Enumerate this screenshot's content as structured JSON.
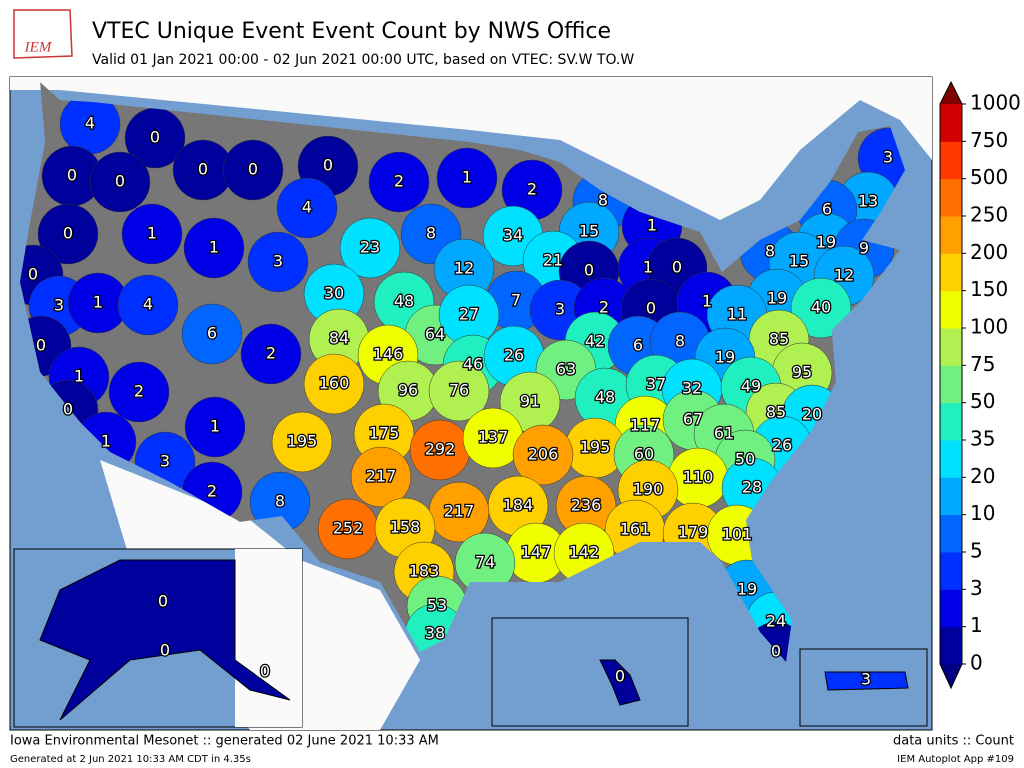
{
  "header": {
    "logo": "IEM",
    "title": "VTEC Unique Event Event Count by NWS Office",
    "subtitle": "Valid 01 Jan 2021 00:00 - 02 Jun 2021 00:00 UTC, based on VTEC: SV.W TO.W"
  },
  "map": {
    "labels": [
      4,
      0,
      0,
      0,
      0,
      0,
      0,
      2,
      1,
      2,
      8,
      1,
      3,
      13,
      6,
      4,
      0,
      1,
      1,
      3,
      23,
      8,
      34,
      15,
      19,
      9,
      21,
      12,
      0,
      1,
      0,
      8,
      15,
      12,
      0,
      3,
      1,
      4,
      30,
      48,
      7,
      3,
      2,
      0,
      1,
      19,
      40,
      6,
      2,
      84,
      64,
      27,
      11,
      0,
      146,
      46,
      26,
      42,
      63,
      6,
      8,
      85,
      1,
      2,
      160,
      96,
      76,
      19,
      95,
      91,
      48,
      37,
      32,
      49,
      0,
      85,
      20,
      195,
      175,
      292,
      137,
      117,
      67,
      61,
      1,
      1,
      195,
      206,
      60,
      26,
      50,
      3,
      217,
      110,
      190,
      28,
      2,
      8,
      184,
      236,
      217,
      252,
      158,
      161,
      179,
      101,
      147,
      142,
      74,
      183,
      19,
      53,
      38,
      24,
      0,
      0,
      0,
      0,
      0,
      3
    ]
  },
  "colorbar": {
    "ticks": [
      0,
      1,
      3,
      5,
      10,
      20,
      35,
      50,
      75,
      100,
      150,
      200,
      250,
      500,
      750,
      1000
    ],
    "colors": [
      "#00009c",
      "#0000e6",
      "#0030ff",
      "#0066ff",
      "#00a8ff",
      "#00e0ff",
      "#20f0c0",
      "#70f080",
      "#b0f050",
      "#f0ff00",
      "#ffd000",
      "#ffa000",
      "#ff7000",
      "#ff3800",
      "#d00000"
    ],
    "over": "#800000",
    "under": "#000080"
  },
  "footer": {
    "left": "Iowa Environmental Mesonet :: generated 02 June 2021 10:33 AM",
    "left_small": "Generated at 2 Jun 2021 10:33 AM CDT in 4.35s",
    "right": "data units :: Count",
    "right_small": "IEM Autoplot App #109"
  }
}
